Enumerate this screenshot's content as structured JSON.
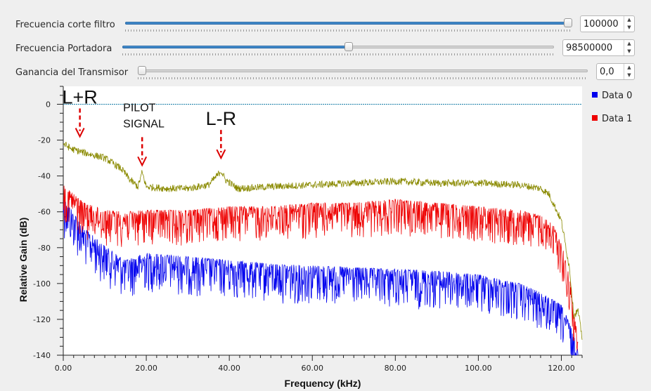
{
  "controls": [
    {
      "label": "Frecuencia corte filtro",
      "value": "100000",
      "fraction": 0.995
    },
    {
      "label": "Frecuencia Portadora",
      "value": "98500000",
      "fraction": 0.525
    },
    {
      "label": "Ganancia del Transmisor",
      "value": "0,0",
      "fraction": 0.0
    }
  ],
  "spin_up_glyph": "▲",
  "spin_down_glyph": "▼",
  "colors": {
    "data0": "#0000ee",
    "data1": "#ee0000",
    "envelope": "#8a8a00",
    "reference": "#1a7ea8",
    "annotation_arrow": "#dd0000"
  },
  "chart_data": {
    "type": "line",
    "xlabel": "Frequency (kHz)",
    "ylabel": "Relative Gain (dB)",
    "xlim": [
      0,
      125
    ],
    "ylim": [
      -140,
      10
    ],
    "xticks": [
      "0.00",
      "20.00",
      "40.00",
      "60.00",
      "80.00",
      "100.00",
      "120.00"
    ],
    "yticks": [
      "0",
      "-20",
      "-40",
      "-60",
      "-80",
      "-100",
      "-120",
      "-140"
    ],
    "legend_position": "right",
    "legend": [
      "Data 0",
      "Data 1"
    ],
    "reference_line_db": 0,
    "annotations": [
      {
        "text": "L+R",
        "x": 4,
        "y": -18
      },
      {
        "text": "PILOT SIGNAL",
        "x": 19,
        "y": -34
      },
      {
        "text": "L-R",
        "x": 38,
        "y": -30
      }
    ],
    "series": [
      {
        "name": "Data 0",
        "x": [
          0,
          5,
          10,
          15,
          20,
          30,
          40,
          50,
          60,
          70,
          80,
          90,
          100,
          110,
          115,
          120,
          122,
          124
        ],
        "y": [
          -55,
          -72,
          -82,
          -90,
          -86,
          -88,
          -90,
          -92,
          -93,
          -94,
          -95,
          -96,
          -98,
          -103,
          -108,
          -115,
          -125,
          -140
        ]
      },
      {
        "name": "Data 1",
        "x": [
          0,
          5,
          10,
          15,
          20,
          30,
          40,
          50,
          60,
          70,
          80,
          90,
          100,
          110,
          115,
          118,
          120,
          122,
          124
        ],
        "y": [
          -48,
          -58,
          -62,
          -63,
          -62,
          -62,
          -60,
          -60,
          -58,
          -58,
          -56,
          -58,
          -60,
          -62,
          -65,
          -70,
          -80,
          -100,
          -135
        ]
      },
      {
        "name": "",
        "x": [
          0,
          2,
          5,
          10,
          14,
          16,
          18,
          19,
          20,
          25,
          30,
          35,
          37,
          38,
          39,
          42,
          50,
          60,
          70,
          80,
          90,
          100,
          110,
          115,
          117,
          120,
          122,
          123,
          124,
          125
        ],
        "y": [
          -22,
          -25,
          -27,
          -30,
          -36,
          -42,
          -46,
          -38,
          -46,
          -47,
          -47,
          -45,
          -40,
          -37,
          -42,
          -47,
          -46,
          -45,
          -44,
          -43,
          -44,
          -44,
          -45,
          -47,
          -50,
          -65,
          -92,
          -118,
          -115,
          -130
        ]
      }
    ]
  }
}
